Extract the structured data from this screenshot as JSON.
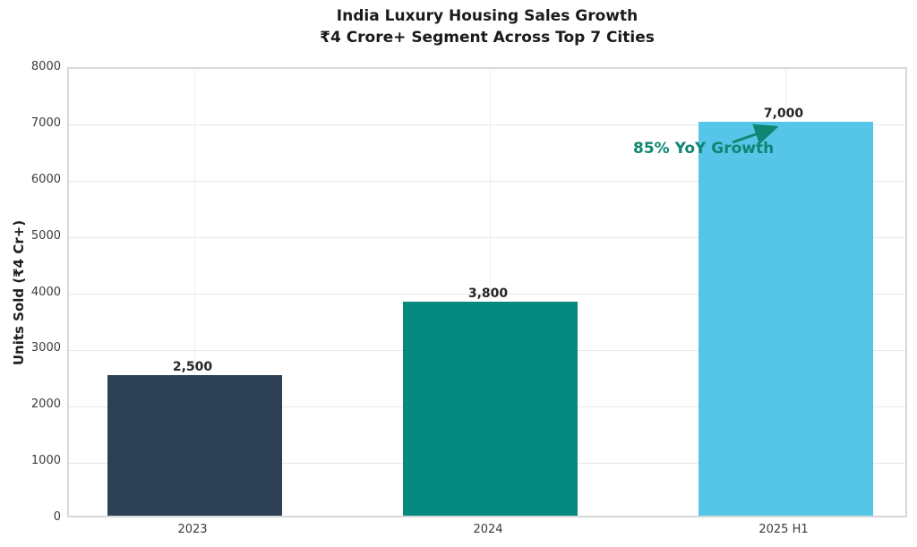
{
  "title_lines": [
    "India Luxury Housing Sales Growth",
    "₹4 Crore+ Segment Across Top 7 Cities"
  ],
  "chart_data": {
    "type": "bar",
    "title": "India Luxury Housing Sales Growth\n₹4 Crore+ Segment Across Top 7 Cities",
    "categories": [
      "2023",
      "2024",
      "2025 H1"
    ],
    "values": [
      2500,
      3800,
      7000
    ],
    "value_labels": [
      "2,500",
      "3,800",
      "7,000"
    ],
    "bar_colors": [
      "#2e4053",
      "#068a80",
      "#56c6e8"
    ],
    "xlabel": "",
    "ylabel": "Units Sold (₹4 Cr+)",
    "ylim": [
      0,
      8000
    ],
    "yticks": [
      0,
      1000,
      2000,
      3000,
      4000,
      5000,
      6000,
      7000,
      8000
    ],
    "grid": true,
    "legend": "none",
    "annotation": {
      "text": "85% YoY Growth",
      "color": "#0f8573",
      "points_to_value": 7000
    }
  },
  "colors": {
    "title": "#1a1a1a",
    "tick_labels": "#3b3b3b",
    "value_labels": "#262626",
    "spine": "#d8d8d8",
    "grid_h": "#e8e8e8",
    "grid_v": "#eeeeee",
    "background": "#ffffff"
  }
}
